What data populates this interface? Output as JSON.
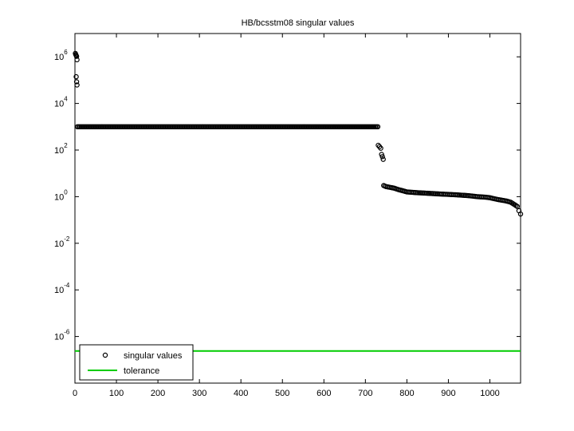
{
  "chart_data": {
    "type": "scatter",
    "title": "HB/bcsstm08 singular values",
    "xlabel": "",
    "ylabel": "",
    "xlim": [
      0,
      1074
    ],
    "ylim": [
      1e-08,
      10000000.0
    ],
    "yscale": "log",
    "xticks": [
      0,
      100,
      200,
      300,
      400,
      500,
      600,
      700,
      800,
      900,
      1000
    ],
    "yticks": [
      {
        "base": "10",
        "exp": "6",
        "value": 1000000.0
      },
      {
        "base": "10",
        "exp": "4",
        "value": 10000.0
      },
      {
        "base": "10",
        "exp": "2",
        "value": 100.0
      },
      {
        "base": "10",
        "exp": "0",
        "value": 1
      },
      {
        "base": "10",
        "exp": "-2",
        "value": 0.01
      },
      {
        "base": "10",
        "exp": "-4",
        "value": 0.0001
      },
      {
        "base": "10",
        "exp": "-6",
        "value": 1e-06
      }
    ],
    "grid": false,
    "legend_position": "bottom-left",
    "series": [
      {
        "name": "singular values",
        "marker": "circle",
        "color": "#000000",
        "points": [
          [
            1,
            1400000
          ],
          [
            2,
            1250000
          ],
          [
            3,
            1150000
          ],
          [
            4,
            1050000
          ],
          [
            5,
            750000
          ],
          [
            3,
            140000
          ],
          [
            4,
            85000
          ],
          [
            5,
            62000
          ],
          [
            6,
            1000
          ],
          [
            730,
            1000
          ],
          [
            731,
            160
          ],
          [
            734,
            140
          ],
          [
            737,
            120
          ],
          [
            739,
            65
          ],
          [
            741,
            52
          ],
          [
            743,
            40
          ],
          [
            744,
            3.0
          ],
          [
            750,
            2.7
          ],
          [
            760,
            2.5
          ],
          [
            770,
            2.3
          ],
          [
            780,
            2.0
          ],
          [
            790,
            1.8
          ],
          [
            800,
            1.6
          ],
          [
            820,
            1.5
          ],
          [
            850,
            1.4
          ],
          [
            880,
            1.3
          ],
          [
            900,
            1.25
          ],
          [
            920,
            1.2
          ],
          [
            950,
            1.1
          ],
          [
            970,
            1.0
          ],
          [
            990,
            0.95
          ],
          [
            1000,
            0.9
          ],
          [
            1010,
            0.82
          ],
          [
            1020,
            0.75
          ],
          [
            1030,
            0.7
          ],
          [
            1040,
            0.65
          ],
          [
            1050,
            0.58
          ],
          [
            1060,
            0.45
          ],
          [
            1066,
            0.38
          ],
          [
            1070,
            0.25
          ],
          [
            1074,
            0.18
          ]
        ]
      },
      {
        "name": "tolerance",
        "color": "#00cc00",
        "value": 2.4e-07
      }
    ]
  }
}
